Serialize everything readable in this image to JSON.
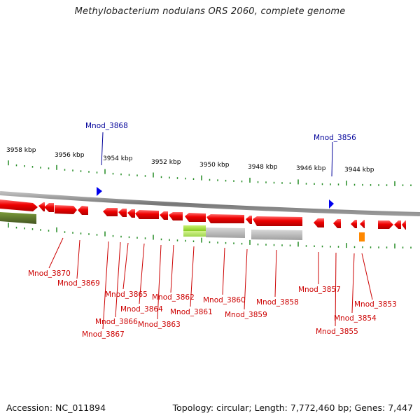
{
  "title": "Methylobacterium nodulans ORS 2060, complete genome",
  "footer": {
    "accession_label": "Accession:",
    "accession_value": "NC_011894",
    "topology_text": "Topology: circular; Length: 7,772,460 bp; Genes: 7,447"
  },
  "colors": {
    "gene_red": "#ee0000",
    "gene_red_light": "#ff5555",
    "gene_green": "#556b2f",
    "gene_lightgreen": "#99dd33",
    "gene_gray": "#b0b0b0",
    "gene_orange": "#ff8800",
    "marker_blue": "#0000ee",
    "label_red": "#cc0000",
    "label_blue": "#000099",
    "backbone_gray": "#888888",
    "tick_green": "#228b22"
  },
  "kbp_labels": [
    "3958 kbp",
    "3956 kbp",
    "3954 kbp",
    "3952 kbp",
    "3950 kbp",
    "3948 kbp",
    "3946 kbp",
    "3944 kbp"
  ],
  "blue_labels": [
    "Mnod_3868",
    "Mnod_3856"
  ],
  "red_labels": [
    "Mnod_3870",
    "Mnod_3869",
    "Mnod_3867",
    "Mnod_3866",
    "Mnod_3865",
    "Mnod_3864",
    "Mnod_3863",
    "Mnod_3862",
    "Mnod_3861",
    "Mnod_3860",
    "Mnod_3859",
    "Mnod_3858",
    "Mnod_3857",
    "Mnod_3855",
    "Mnod_3854",
    "Mnod_3853"
  ]
}
